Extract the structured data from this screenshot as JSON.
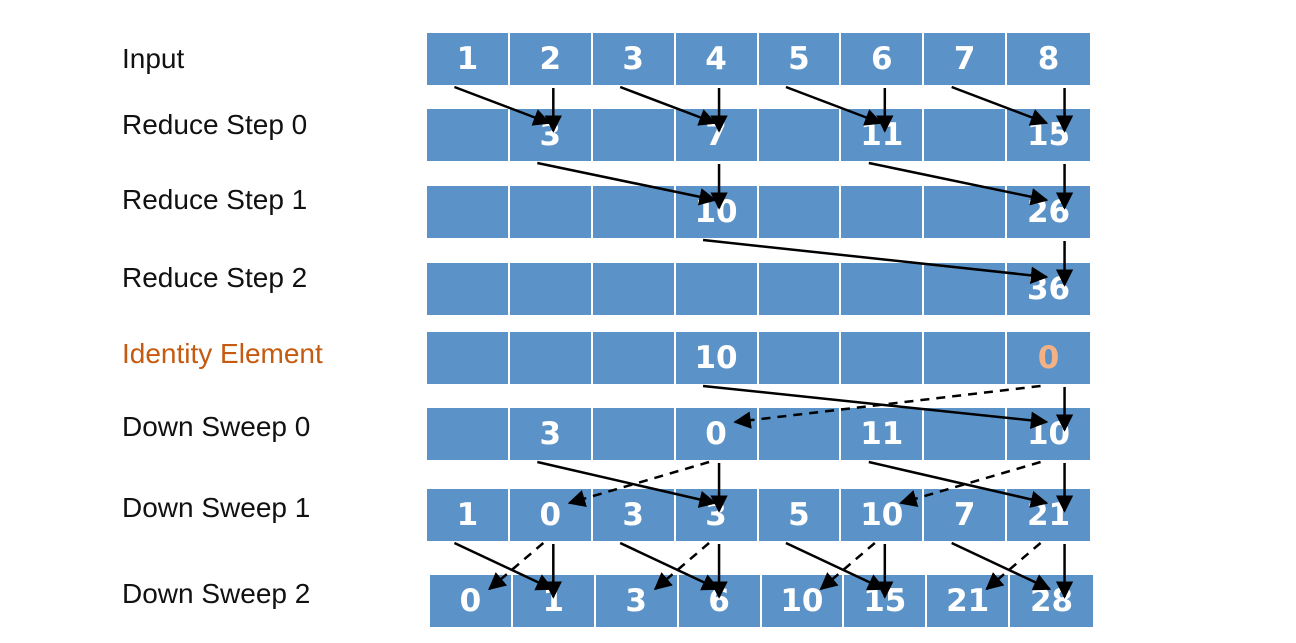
{
  "colors": {
    "cell_fill": "#5b93c8",
    "cell_text": "#ffffff",
    "identity_label": "#c55a11",
    "identity_value": "#f4b183",
    "arrow": "#000000"
  },
  "rows": [
    {
      "label": "Input",
      "cells": [
        "1",
        "2",
        "3",
        "4",
        "5",
        "6",
        "7",
        "8"
      ]
    },
    {
      "label": "Reduce Step 0",
      "cells": [
        "",
        "3",
        "",
        "7",
        "",
        "11",
        "",
        "15"
      ]
    },
    {
      "label": "Reduce Step 1",
      "cells": [
        "",
        "",
        "",
        "10",
        "",
        "",
        "",
        "26"
      ]
    },
    {
      "label": "Reduce Step 2",
      "cells": [
        "",
        "",
        "",
        "",
        "",
        "",
        "",
        "36"
      ]
    },
    {
      "label": "Identity Element",
      "cells": [
        "",
        "",
        "",
        "10",
        "",
        "",
        "",
        "0"
      ],
      "accent": true,
      "highlight_cell": 7
    },
    {
      "label": "Down Sweep 0",
      "cells": [
        "",
        "3",
        "",
        "0",
        "",
        "11",
        "",
        "10"
      ]
    },
    {
      "label": "Down Sweep 1",
      "cells": [
        "1",
        "0",
        "3",
        "3",
        "5",
        "10",
        "7",
        "21"
      ]
    },
    {
      "label": "Down Sweep 2",
      "cells": [
        "0",
        "1",
        "3",
        "6",
        "10",
        "15",
        "21",
        "28"
      ]
    }
  ],
  "arrows": [
    {
      "from": [
        0,
        0
      ],
      "to": [
        1,
        1
      ],
      "style": "solid"
    },
    {
      "from": [
        0,
        1
      ],
      "to": [
        1,
        1
      ],
      "style": "solid"
    },
    {
      "from": [
        0,
        2
      ],
      "to": [
        1,
        3
      ],
      "style": "solid"
    },
    {
      "from": [
        0,
        3
      ],
      "to": [
        1,
        3
      ],
      "style": "solid"
    },
    {
      "from": [
        0,
        4
      ],
      "to": [
        1,
        5
      ],
      "style": "solid"
    },
    {
      "from": [
        0,
        5
      ],
      "to": [
        1,
        5
      ],
      "style": "solid"
    },
    {
      "from": [
        0,
        6
      ],
      "to": [
        1,
        7
      ],
      "style": "solid"
    },
    {
      "from": [
        0,
        7
      ],
      "to": [
        1,
        7
      ],
      "style": "solid"
    },
    {
      "from": [
        1,
        1
      ],
      "to": [
        2,
        3
      ],
      "style": "solid"
    },
    {
      "from": [
        1,
        3
      ],
      "to": [
        2,
        3
      ],
      "style": "solid"
    },
    {
      "from": [
        1,
        5
      ],
      "to": [
        2,
        7
      ],
      "style": "solid"
    },
    {
      "from": [
        1,
        7
      ],
      "to": [
        2,
        7
      ],
      "style": "solid"
    },
    {
      "from": [
        2,
        3
      ],
      "to": [
        3,
        7
      ],
      "style": "solid"
    },
    {
      "from": [
        2,
        7
      ],
      "to": [
        3,
        7
      ],
      "style": "solid"
    },
    {
      "from": [
        4,
        3
      ],
      "to": [
        5,
        7
      ],
      "style": "solid"
    },
    {
      "from": [
        4,
        7
      ],
      "to": [
        5,
        7
      ],
      "style": "solid"
    },
    {
      "from": [
        4,
        7
      ],
      "to": [
        5,
        3
      ],
      "style": "dashed"
    },
    {
      "from": [
        5,
        1
      ],
      "to": [
        6,
        3
      ],
      "style": "solid"
    },
    {
      "from": [
        5,
        3
      ],
      "to": [
        6,
        3
      ],
      "style": "solid"
    },
    {
      "from": [
        5,
        3
      ],
      "to": [
        6,
        1
      ],
      "style": "dashed"
    },
    {
      "from": [
        5,
        5
      ],
      "to": [
        6,
        7
      ],
      "style": "solid"
    },
    {
      "from": [
        5,
        7
      ],
      "to": [
        6,
        7
      ],
      "style": "solid"
    },
    {
      "from": [
        5,
        7
      ],
      "to": [
        6,
        5
      ],
      "style": "dashed"
    },
    {
      "from": [
        6,
        0
      ],
      "to": [
        7,
        1
      ],
      "style": "solid"
    },
    {
      "from": [
        6,
        1
      ],
      "to": [
        7,
        1
      ],
      "style": "solid"
    },
    {
      "from": [
        6,
        1
      ],
      "to": [
        7,
        0
      ],
      "style": "dashed"
    },
    {
      "from": [
        6,
        2
      ],
      "to": [
        7,
        3
      ],
      "style": "solid"
    },
    {
      "from": [
        6,
        3
      ],
      "to": [
        7,
        3
      ],
      "style": "solid"
    },
    {
      "from": [
        6,
        3
      ],
      "to": [
        7,
        2
      ],
      "style": "dashed"
    },
    {
      "from": [
        6,
        4
      ],
      "to": [
        7,
        5
      ],
      "style": "solid"
    },
    {
      "from": [
        6,
        5
      ],
      "to": [
        7,
        5
      ],
      "style": "solid"
    },
    {
      "from": [
        6,
        5
      ],
      "to": [
        7,
        4
      ],
      "style": "dashed"
    },
    {
      "from": [
        6,
        6
      ],
      "to": [
        7,
        7
      ],
      "style": "solid"
    },
    {
      "from": [
        6,
        7
      ],
      "to": [
        7,
        7
      ],
      "style": "solid"
    },
    {
      "from": [
        6,
        7
      ],
      "to": [
        7,
        6
      ],
      "style": "dashed"
    }
  ]
}
